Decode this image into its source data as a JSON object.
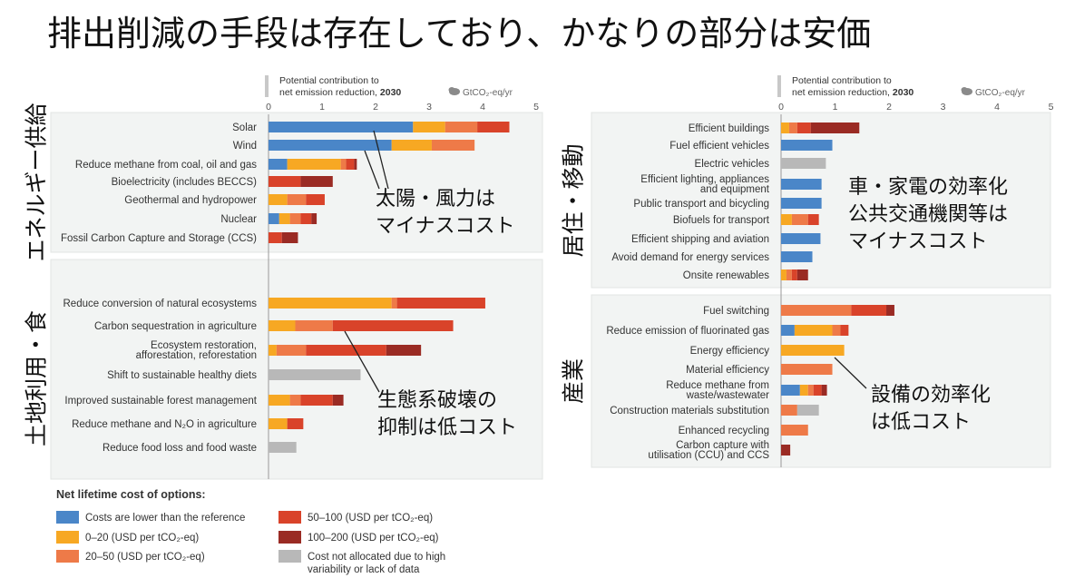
{
  "title": "排出削減の手段は存在しており、かなりの部分は安価",
  "axis": {
    "header_line1": "Potential contribution to",
    "header_line2": "net emission reduction, 2030",
    "unit": "GtCO₂-eq/yr",
    "range": [
      0,
      5
    ],
    "ticks": [
      "0",
      "1",
      "2",
      "3",
      "4",
      "5"
    ]
  },
  "colors": {
    "blue": "#4a86c8",
    "c0_20": "#f7a823",
    "c20_50": "#ee7a48",
    "c50_100": "#d9432a",
    "c100_200": "#9a2b24",
    "grey": "#b8b8b8"
  },
  "legend": {
    "title": "Net lifetime cost of options:",
    "items": [
      {
        "key": "blue",
        "text": [
          "Costs are lower than the reference"
        ]
      },
      {
        "key": "c0_20",
        "text": [
          "0–20 (USD per tCO₂-eq)"
        ]
      },
      {
        "key": "c20_50",
        "text": [
          "20–50 (USD per tCO₂-eq)"
        ]
      },
      {
        "key": "c50_100",
        "text": [
          "50–100 (USD per tCO₂-eq)"
        ]
      },
      {
        "key": "c100_200",
        "text": [
          "100–200 (USD per tCO₂-eq)"
        ]
      },
      {
        "key": "grey",
        "text": [
          "Cost not allocated due to high",
          "variability or lack of data"
        ]
      }
    ]
  },
  "chart_data": [
    {
      "type": "bar",
      "orientation": "horizontal",
      "stacked": true,
      "panel": "left",
      "xlim": [
        0,
        5
      ],
      "groups": [
        {
          "name": "エネルギー供給",
          "items": [
            {
              "label": [
                "Solar"
              ],
              "segments": [
                [
                  "blue",
                  2.7
                ],
                [
                  "c0_20",
                  0.6
                ],
                [
                  "c20_50",
                  0.6
                ],
                [
                  "c50_100",
                  0.6
                ]
              ]
            },
            {
              "label": [
                "Wind"
              ],
              "segments": [
                [
                  "blue",
                  2.3
                ],
                [
                  "c0_20",
                  0.75
                ],
                [
                  "c20_50",
                  0.8
                ]
              ]
            },
            {
              "label": [
                "Reduce methane from coal, oil and gas"
              ],
              "segments": [
                [
                  "blue",
                  0.35
                ],
                [
                  "c0_20",
                  1.0
                ],
                [
                  "c20_50",
                  0.1
                ],
                [
                  "c50_100",
                  0.15
                ],
                [
                  "c100_200",
                  0.05
                ]
              ]
            },
            {
              "label": [
                "Bioelectricity (includes BECCS)"
              ],
              "segments": [
                [
                  "c50_100",
                  0.6
                ],
                [
                  "c100_200",
                  0.6
                ]
              ]
            },
            {
              "label": [
                "Geothermal and hydropower"
              ],
              "segments": [
                [
                  "c0_20",
                  0.35
                ],
                [
                  "c20_50",
                  0.35
                ],
                [
                  "c50_100",
                  0.35
                ]
              ]
            },
            {
              "label": [
                "Nuclear"
              ],
              "segments": [
                [
                  "blue",
                  0.2
                ],
                [
                  "c0_20",
                  0.2
                ],
                [
                  "c20_50",
                  0.2
                ],
                [
                  "c50_100",
                  0.2
                ],
                [
                  "c100_200",
                  0.1
                ]
              ]
            },
            {
              "label": [
                "Fossil Carbon Capture and Storage (CCS)"
              ],
              "segments": [
                [
                  "c50_100",
                  0.25
                ],
                [
                  "c100_200",
                  0.3
                ]
              ]
            }
          ]
        },
        {
          "name": "土地利用・食",
          "items": [
            {
              "label": [
                "Reduce conversion of natural ecosystems"
              ],
              "segments": [
                [
                  "c0_20",
                  2.3
                ],
                [
                  "c20_50",
                  0.1
                ],
                [
                  "c50_100",
                  1.65
                ]
              ]
            },
            {
              "label": [
                "Carbon sequestration in agriculture"
              ],
              "segments": [
                [
                  "c0_20",
                  0.5
                ],
                [
                  "c20_50",
                  0.7
                ],
                [
                  "c50_100",
                  2.25
                ]
              ]
            },
            {
              "label": [
                "Ecosystem restoration,",
                "afforestation, reforestation"
              ],
              "segments": [
                [
                  "c0_20",
                  0.15
                ],
                [
                  "c20_50",
                  0.55
                ],
                [
                  "c50_100",
                  1.5
                ],
                [
                  "c100_200",
                  0.65
                ]
              ]
            },
            {
              "label": [
                "Shift to sustainable healthy diets"
              ],
              "segments": [
                [
                  "grey",
                  1.72
                ]
              ]
            },
            {
              "label": [
                "Improved sustainable forest management"
              ],
              "segments": [
                [
                  "c0_20",
                  0.4
                ],
                [
                  "c20_50",
                  0.2
                ],
                [
                  "c50_100",
                  0.6
                ],
                [
                  "c100_200",
                  0.2
                ]
              ]
            },
            {
              "label": [
                "Reduce methane and N₂O in agriculture"
              ],
              "segments": [
                [
                  "c0_20",
                  0.35
                ],
                [
                  "c50_100",
                  0.3
                ]
              ]
            },
            {
              "label": [
                "Reduce food loss and food waste"
              ],
              "segments": [
                [
                  "grey",
                  0.52
                ]
              ]
            }
          ]
        }
      ]
    },
    {
      "type": "bar",
      "orientation": "horizontal",
      "stacked": true,
      "panel": "right",
      "xlim": [
        0,
        5
      ],
      "groups": [
        {
          "name": "居住・移動",
          "items": [
            {
              "label": [
                "Efficient buildings"
              ],
              "segments": [
                [
                  "c0_20",
                  0.15
                ],
                [
                  "c20_50",
                  0.15
                ],
                [
                  "c50_100",
                  0.25
                ],
                [
                  "c100_200",
                  0.9
                ]
              ]
            },
            {
              "label": [
                "Fuel efficient vehicles"
              ],
              "segments": [
                [
                  "blue",
                  0.95
                ]
              ]
            },
            {
              "label": [
                "Electric vehicles"
              ],
              "segments": [
                [
                  "grey",
                  0.83
                ]
              ]
            },
            {
              "label": [
                "Efficient lighting, appliances",
                "and equipment"
              ],
              "segments": [
                [
                  "blue",
                  0.75
                ]
              ]
            },
            {
              "label": [
                "Public transport and bicycling"
              ],
              "segments": [
                [
                  "blue",
                  0.75
                ]
              ]
            },
            {
              "label": [
                "Biofuels for transport"
              ],
              "segments": [
                [
                  "c0_20",
                  0.2
                ],
                [
                  "c20_50",
                  0.3
                ],
                [
                  "c50_100",
                  0.2
                ]
              ]
            },
            {
              "label": [
                "Efficient shipping and aviation"
              ],
              "segments": [
                [
                  "blue",
                  0.73
                ]
              ]
            },
            {
              "label": [
                "Avoid demand for energy services"
              ],
              "segments": [
                [
                  "blue",
                  0.58
                ]
              ]
            },
            {
              "label": [
                "Onsite renewables"
              ],
              "segments": [
                [
                  "c0_20",
                  0.1
                ],
                [
                  "c20_50",
                  0.1
                ],
                [
                  "c50_100",
                  0.1
                ],
                [
                  "c100_200",
                  0.2
                ]
              ]
            }
          ]
        },
        {
          "name": "産業",
          "items": [
            {
              "label": [
                "Fuel switching"
              ],
              "segments": [
                [
                  "c20_50",
                  1.3
                ],
                [
                  "c50_100",
                  0.65
                ],
                [
                  "c100_200",
                  0.15
                ]
              ]
            },
            {
              "label": [
                "Reduce emission of fluorinated gas"
              ],
              "segments": [
                [
                  "blue",
                  0.25
                ],
                [
                  "c0_20",
                  0.7
                ],
                [
                  "c20_50",
                  0.15
                ],
                [
                  "c50_100",
                  0.15
                ]
              ]
            },
            {
              "label": [
                "Energy efficiency"
              ],
              "segments": [
                [
                  "c0_20",
                  1.17
                ]
              ]
            },
            {
              "label": [
                "Material efficiency"
              ],
              "segments": [
                [
                  "c20_50",
                  0.95
                ]
              ]
            },
            {
              "label": [
                "Reduce methane from",
                "waste/wastewater"
              ],
              "segments": [
                [
                  "blue",
                  0.35
                ],
                [
                  "c0_20",
                  0.15
                ],
                [
                  "c20_50",
                  0.1
                ],
                [
                  "c50_100",
                  0.15
                ],
                [
                  "c100_200",
                  0.1
                ]
              ]
            },
            {
              "label": [
                "Construction materials substitution"
              ],
              "segments": [
                [
                  "c20_50",
                  0.3
                ],
                [
                  "grey",
                  0.4
                ]
              ]
            },
            {
              "label": [
                "Enhanced recycling"
              ],
              "segments": [
                [
                  "c20_50",
                  0.5
                ]
              ]
            },
            {
              "label": [
                "Carbon capture with",
                "utilisation (CCU) and CCS"
              ],
              "segments": [
                [
                  "c100_200",
                  0.17
                ]
              ]
            }
          ]
        }
      ]
    }
  ],
  "annotations": [
    {
      "lines": [
        "太陽・風力は",
        "マイナスコスト"
      ]
    },
    {
      "lines": [
        "生態系破壊の",
        "抑制は低コスト"
      ]
    },
    {
      "lines": [
        "車・家電の効率化",
        "公共交通機関等は",
        "マイナスコスト"
      ]
    },
    {
      "lines": [
        "設備の効率化",
        "は低コスト"
      ]
    }
  ]
}
